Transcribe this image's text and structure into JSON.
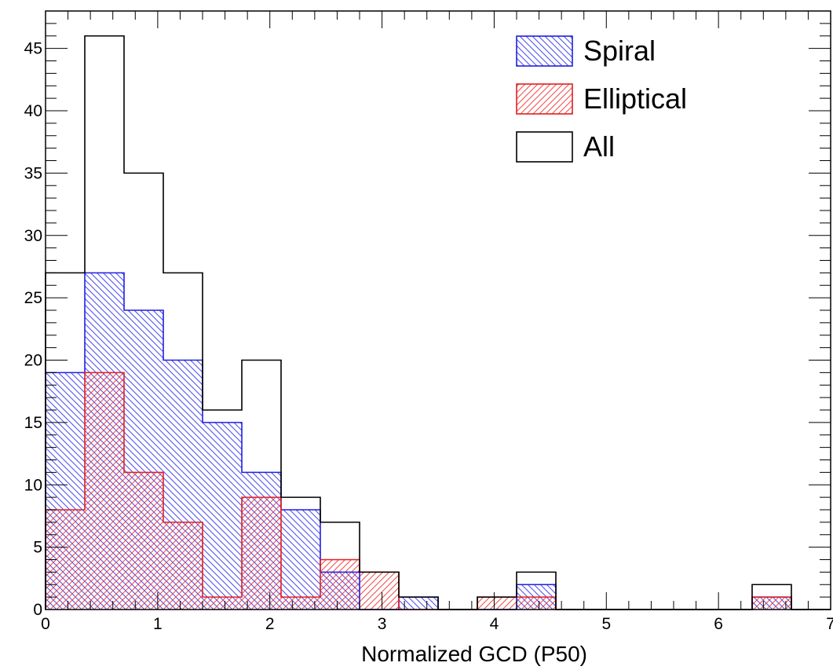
{
  "chart_data": {
    "type": "histogram",
    "title": "",
    "xlabel": "Normalized GCD (P50)",
    "ylabel": "",
    "xlim": [
      0,
      7
    ],
    "ylim": [
      0,
      48
    ],
    "grid": false,
    "legend_position": "top-right",
    "bin_edges": [
      0,
      0.35,
      0.7,
      1.05,
      1.4,
      1.75,
      2.1,
      2.45,
      2.8,
      3.15,
      3.5,
      3.85,
      4.2,
      4.55,
      4.9,
      5.25,
      5.6,
      5.95,
      6.3,
      6.65,
      7.0
    ],
    "x_ticks": [
      0,
      1,
      2,
      3,
      4,
      5,
      6,
      7
    ],
    "y_ticks": [
      0,
      5,
      10,
      15,
      20,
      25,
      30,
      35,
      40,
      45
    ],
    "series": [
      {
        "name": "Spiral",
        "color": "#2020e0",
        "hatch": "diagonal-down",
        "values": [
          19,
          27,
          24,
          20,
          15,
          11,
          8,
          3,
          0,
          1,
          0,
          0,
          2,
          0,
          0,
          0,
          0,
          0,
          1,
          0
        ]
      },
      {
        "name": "Elliptical",
        "color": "#e02020",
        "hatch": "diagonal-up",
        "values": [
          8,
          19,
          11,
          7,
          1,
          9,
          1,
          4,
          3,
          0,
          0,
          1,
          1,
          0,
          0,
          0,
          0,
          0,
          1,
          0
        ]
      },
      {
        "name": "All",
        "color": "#000000",
        "hatch": "none",
        "values": [
          27,
          46,
          35,
          27,
          16,
          20,
          9,
          7,
          3,
          1,
          0,
          1,
          3,
          0,
          0,
          0,
          0,
          0,
          2,
          0
        ]
      }
    ]
  }
}
